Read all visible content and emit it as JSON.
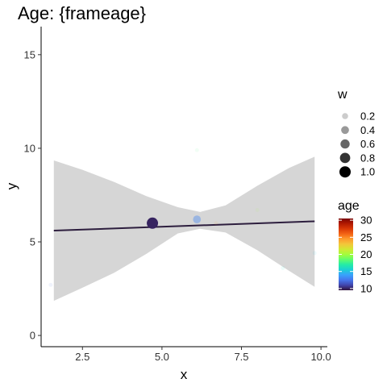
{
  "chart_data": {
    "type": "scatter",
    "title": "Age: {frameage}",
    "xlabel": "x",
    "ylabel": "y",
    "xlim": [
      1.2,
      10.2
    ],
    "ylim": [
      -0.6,
      16.5
    ],
    "x_ticks": [
      2.5,
      5.0,
      7.5,
      10.0
    ],
    "x_tick_labels": [
      "2.5",
      "5.0",
      "7.5",
      "10.0"
    ],
    "y_ticks": [
      0,
      5,
      10,
      15
    ],
    "y_tick_labels": [
      "0",
      "5",
      "10",
      "15"
    ],
    "grid": false,
    "points": [
      {
        "x": 1.5,
        "y": 2.7,
        "w": 0.05,
        "age": 12
      },
      {
        "x": 4.7,
        "y": 6.0,
        "w": 1.0,
        "age": 10
      },
      {
        "x": 6.1,
        "y": 6.2,
        "w": 0.4,
        "age": 13
      },
      {
        "x": 6.1,
        "y": 9.9,
        "w": 0.05,
        "age": 18
      },
      {
        "x": 6.7,
        "y": 6.0,
        "w": 0.05,
        "age": 24
      },
      {
        "x": 8.0,
        "y": 6.7,
        "w": 0.05,
        "age": 20
      },
      {
        "x": 8.8,
        "y": 3.6,
        "w": 0.05,
        "age": 16
      },
      {
        "x": 9.8,
        "y": 4.4,
        "w": 0.05,
        "age": 15
      }
    ],
    "fit_line": {
      "x": [
        1.6,
        9.8
      ],
      "y": [
        5.6,
        6.1
      ],
      "color": "#2d1e3e"
    },
    "confidence_band": {
      "x": [
        1.6,
        2.5,
        3.5,
        4.5,
        5.5,
        6.2,
        7.0,
        8.0,
        9.0,
        9.8
      ],
      "upper": [
        9.35,
        8.85,
        8.2,
        7.45,
        6.85,
        6.6,
        6.95,
        8.0,
        8.95,
        9.55
      ],
      "lower": [
        1.85,
        2.55,
        3.35,
        4.35,
        5.45,
        5.7,
        5.5,
        4.55,
        3.45,
        2.6
      ],
      "color": "#d6d6d6"
    },
    "size_legend": {
      "title": "w",
      "breaks": [
        0.2,
        0.4,
        0.6,
        0.8,
        1.0
      ],
      "labels": [
        "0.2",
        "0.4",
        "0.6",
        "0.8",
        "1.0"
      ]
    },
    "color_legend": {
      "title": "age",
      "limits": [
        9.5,
        30.5
      ],
      "breaks": [
        10,
        15,
        20,
        25,
        30
      ],
      "labels": [
        "10",
        "15",
        "20",
        "25",
        "30"
      ],
      "palette": [
        "#30123b",
        "#4145ab",
        "#4675ed",
        "#39a2fc",
        "#1bcfd4",
        "#24eca6",
        "#61fc6c",
        "#a4fc3b",
        "#d1e834",
        "#f3c63a",
        "#fe9b2d",
        "#f36315",
        "#d93806",
        "#b11901",
        "#7a0403"
      ]
    },
    "legend_position": "right"
  }
}
